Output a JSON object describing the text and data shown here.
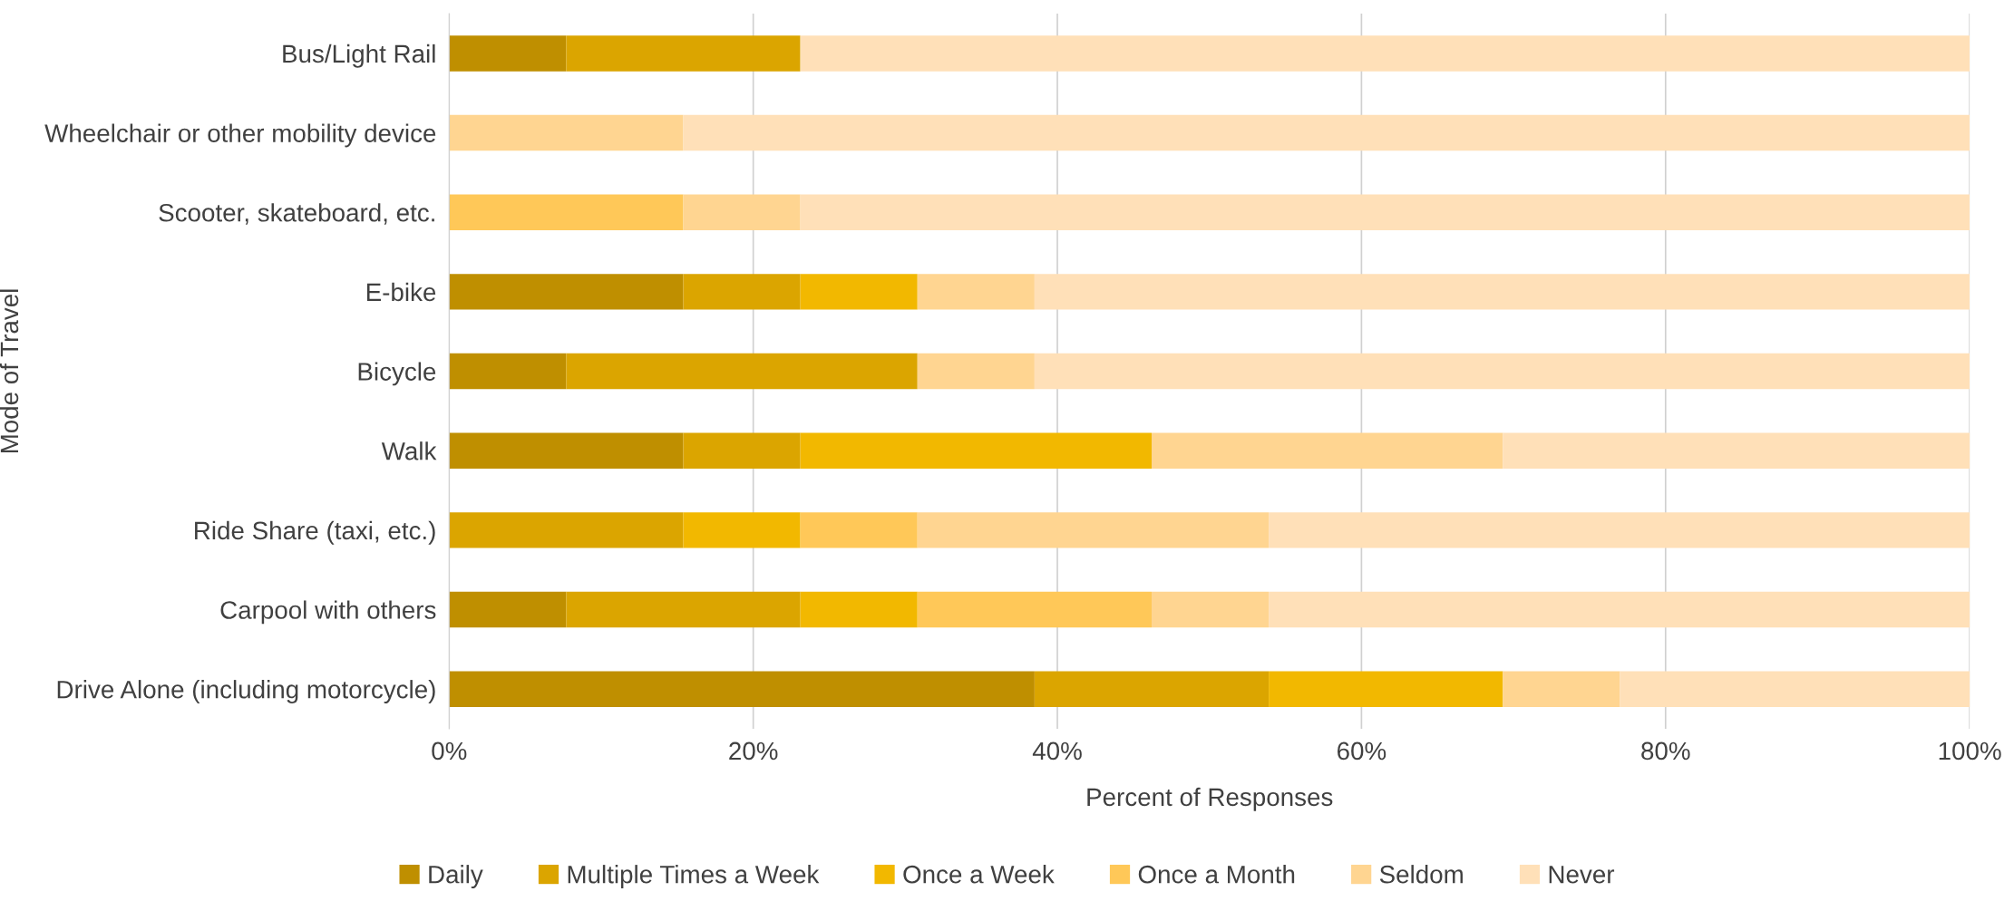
{
  "chart_data": {
    "type": "bar",
    "orientation": "horizontal",
    "stacked": true,
    "xlabel": "Percent of Responses",
    "ylabel": "Mode of Travel",
    "categories": [
      "Bus/Light Rail",
      "Wheelchair or other mobility device",
      "Scooter, skateboard, etc.",
      "E-bike",
      "Bicycle",
      "Walk",
      "Ride Share (taxi, etc.)",
      "Carpool with others",
      "Drive Alone (including motorcycle)"
    ],
    "series": [
      {
        "name": "Daily",
        "color": "#bf8f00",
        "values": [
          7.7,
          0,
          0,
          15.4,
          7.7,
          15.4,
          0,
          7.7,
          38.5
        ]
      },
      {
        "name": "Multiple Times a Week",
        "color": "#dba500",
        "values": [
          15.4,
          0,
          0,
          7.7,
          23.1,
          7.7,
          15.4,
          15.4,
          15.4
        ]
      },
      {
        "name": "Once a Week",
        "color": "#f2b800",
        "values": [
          0,
          0,
          0,
          7.7,
          0,
          23.1,
          7.7,
          7.7,
          15.4
        ]
      },
      {
        "name": "Once a Month",
        "color": "#ffc858",
        "values": [
          0,
          0,
          15.4,
          0,
          0,
          0,
          7.7,
          15.4,
          0
        ]
      },
      {
        "name": "Seldom",
        "color": "#ffd591",
        "values": [
          0,
          15.4,
          7.7,
          7.7,
          7.7,
          23.1,
          23.1,
          7.7,
          7.7
        ]
      },
      {
        "name": "Never",
        "color": "#ffe0b8",
        "values": [
          76.9,
          84.6,
          76.9,
          61.5,
          61.5,
          30.8,
          46.2,
          46.2,
          23.1
        ]
      }
    ],
    "xlim": [
      0,
      100
    ],
    "xticks": [
      {
        "value": 0,
        "label": "0%"
      },
      {
        "value": 20,
        "label": "20%"
      },
      {
        "value": 40,
        "label": "40%"
      },
      {
        "value": 60,
        "label": "60%"
      },
      {
        "value": 80,
        "label": "80%"
      },
      {
        "value": 100,
        "label": "100%"
      }
    ],
    "grid": "x",
    "legend": "bottom"
  }
}
